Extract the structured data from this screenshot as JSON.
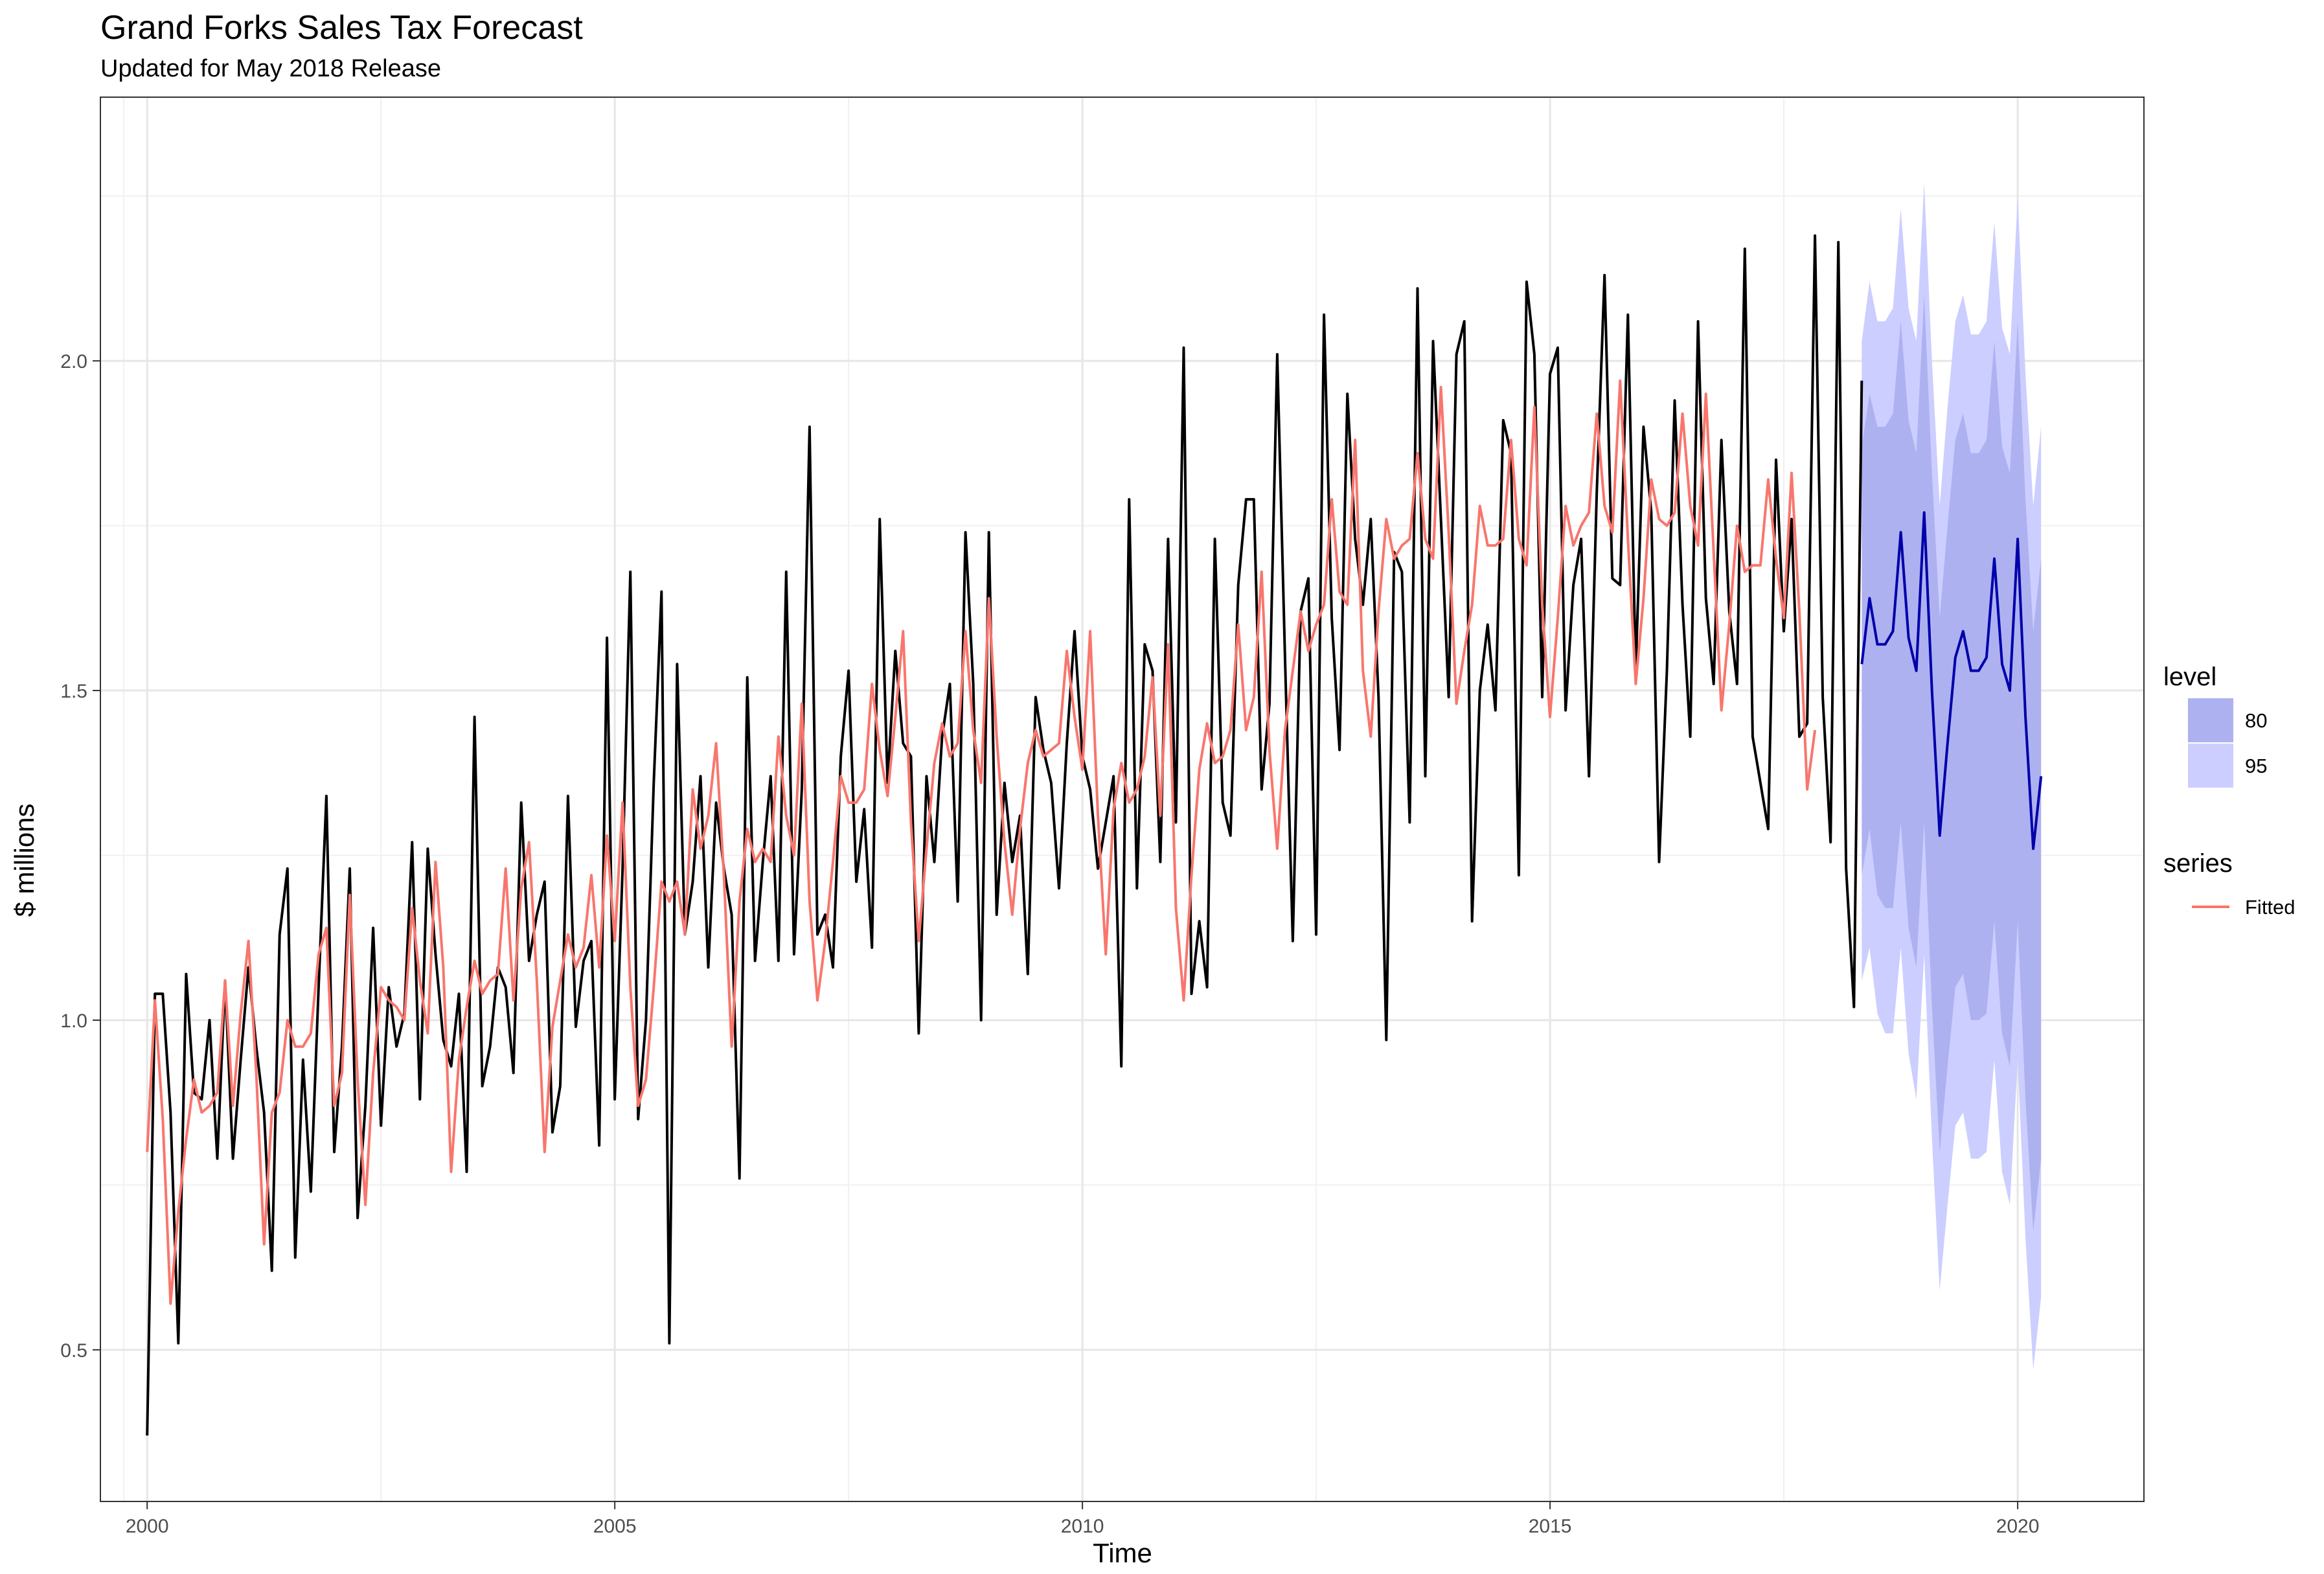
{
  "chart_data": {
    "type": "line",
    "title": "Grand Forks Sales Tax Forecast",
    "subtitle": "Updated for May 2018 Release",
    "xlabel": "Time",
    "ylabel": "$ millions",
    "xlim": [
      1999.5,
      2021.35
    ],
    "ylim": [
      0.27,
      2.4
    ],
    "x_ticks": [
      2000,
      2005,
      2010,
      2015,
      2020
    ],
    "x_tick_labels": [
      "2000",
      "2005",
      "2010",
      "2015",
      "2020"
    ],
    "y_ticks": [
      0.5,
      1.0,
      1.5,
      2.0
    ],
    "y_tick_labels": [
      "0.5",
      "1.0",
      "1.5",
      "2.0"
    ],
    "grid": true,
    "legend_position": "right",
    "actual": {
      "start": 2000.0,
      "step": 0.08333,
      "color": "#000000",
      "values": [
        0.37,
        1.04,
        1.04,
        0.86,
        0.51,
        1.07,
        0.89,
        0.88,
        1.0,
        0.79,
        1.06,
        0.79,
        0.94,
        1.08,
        0.96,
        0.86,
        0.62,
        1.13,
        1.23,
        0.64,
        0.94,
        0.74,
        1.05,
        1.34,
        0.8,
        0.96,
        1.23,
        0.7,
        0.87,
        1.14,
        0.84,
        1.05,
        0.96,
        1.01,
        1.27,
        0.88,
        1.26,
        1.1,
        0.97,
        0.93,
        1.04,
        0.77,
        1.46,
        0.9,
        0.96,
        1.08,
        1.05,
        0.92,
        1.33,
        1.09,
        1.16,
        1.21,
        0.83,
        0.9,
        1.34,
        0.99,
        1.09,
        1.12,
        0.81,
        1.58,
        0.88,
        1.23,
        1.68,
        0.85,
        1.0,
        1.36,
        1.65,
        0.51,
        1.54,
        1.13,
        1.21,
        1.37,
        1.08,
        1.33,
        1.23,
        1.16,
        0.76,
        1.52,
        1.09,
        1.24,
        1.37,
        1.09,
        1.68,
        1.1,
        1.35,
        1.9,
        1.13,
        1.16,
        1.08,
        1.4,
        1.53,
        1.21,
        1.32,
        1.11,
        1.76,
        1.36,
        1.56,
        1.42,
        1.4,
        0.98,
        1.37,
        1.24,
        1.43,
        1.51,
        1.18,
        1.74,
        1.51,
        1.0,
        1.74,
        1.16,
        1.36,
        1.24,
        1.31,
        1.07,
        1.49,
        1.41,
        1.36,
        1.2,
        1.42,
        1.59,
        1.4,
        1.35,
        1.23,
        1.3,
        1.37,
        0.93,
        1.79,
        1.2,
        1.57,
        1.53,
        1.24,
        1.73,
        1.3,
        2.02,
        1.04,
        1.15,
        1.05,
        1.73,
        1.33,
        1.28,
        1.66,
        1.79,
        1.79,
        1.35,
        1.48,
        2.01,
        1.55,
        1.12,
        1.62,
        1.67,
        1.13,
        2.07,
        1.61,
        1.41,
        1.95,
        1.73,
        1.63,
        1.76,
        1.49,
        0.97,
        1.71,
        1.68,
        1.3,
        2.11,
        1.37,
        2.03,
        1.76,
        1.49,
        2.01,
        2.06,
        1.15,
        1.5,
        1.6,
        1.47,
        1.91,
        1.86,
        1.22,
        2.12,
        2.01,
        1.49,
        1.98,
        2.02,
        1.47,
        1.66,
        1.73,
        1.37,
        1.8,
        2.13,
        1.67,
        1.66,
        2.07,
        1.53,
        1.9,
        1.77,
        1.24,
        1.53,
        1.94,
        1.63,
        1.43,
        2.06,
        1.64,
        1.51,
        1.88,
        1.62,
        1.51,
        2.17,
        1.43,
        1.36,
        1.29,
        1.85,
        1.59,
        1.76,
        1.43,
        1.45,
        2.19,
        1.49,
        1.27,
        2.18,
        1.23,
        1.02,
        1.97
      ]
    },
    "fitted": {
      "name": "Fitted",
      "start": 2000.0,
      "step": 0.08333,
      "color": "#f8766d",
      "values": [
        0.8,
        1.03,
        0.85,
        0.57,
        0.71,
        0.82,
        0.91,
        0.86,
        0.87,
        0.89,
        1.06,
        0.87,
        1.01,
        1.12,
        0.92,
        0.66,
        0.86,
        0.89,
        1.0,
        0.96,
        0.96,
        0.98,
        1.1,
        1.14,
        0.87,
        0.92,
        1.19,
        0.91,
        0.72,
        0.92,
        1.05,
        1.03,
        1.02,
        1.0,
        1.17,
        1.06,
        0.98,
        1.24,
        1.08,
        0.77,
        0.94,
        1.02,
        1.09,
        1.04,
        1.06,
        1.07,
        1.23,
        1.03,
        1.2,
        1.27,
        1.06,
        0.8,
        0.99,
        1.06,
        1.13,
        1.08,
        1.11,
        1.22,
        1.08,
        1.28,
        1.12,
        1.33,
        1.05,
        0.87,
        0.91,
        1.05,
        1.21,
        1.18,
        1.21,
        1.13,
        1.35,
        1.26,
        1.31,
        1.42,
        1.22,
        0.96,
        1.18,
        1.29,
        1.24,
        1.26,
        1.24,
        1.43,
        1.31,
        1.25,
        1.48,
        1.18,
        1.03,
        1.12,
        1.24,
        1.37,
        1.33,
        1.33,
        1.35,
        1.51,
        1.41,
        1.34,
        1.46,
        1.59,
        1.3,
        1.12,
        1.26,
        1.39,
        1.45,
        1.4,
        1.42,
        1.59,
        1.44,
        1.36,
        1.64,
        1.43,
        1.27,
        1.16,
        1.29,
        1.39,
        1.44,
        1.4,
        1.41,
        1.42,
        1.56,
        1.46,
        1.38,
        1.59,
        1.31,
        1.1,
        1.32,
        1.39,
        1.33,
        1.35,
        1.4,
        1.52,
        1.31,
        1.57,
        1.17,
        1.03,
        1.22,
        1.38,
        1.45,
        1.39,
        1.4,
        1.44,
        1.6,
        1.44,
        1.49,
        1.68,
        1.41,
        1.26,
        1.44,
        1.53,
        1.62,
        1.56,
        1.6,
        1.63,
        1.79,
        1.65,
        1.63,
        1.88,
        1.53,
        1.43,
        1.62,
        1.76,
        1.7,
        1.72,
        1.73,
        1.86,
        1.73,
        1.7,
        1.96,
        1.74,
        1.48,
        1.56,
        1.63,
        1.78,
        1.72,
        1.72,
        1.73,
        1.88,
        1.73,
        1.69,
        1.93,
        1.63,
        1.46,
        1.61,
        1.78,
        1.72,
        1.75,
        1.77,
        1.92,
        1.78,
        1.74,
        1.97,
        1.73,
        1.51,
        1.64,
        1.82,
        1.76,
        1.75,
        1.77,
        1.92,
        1.78,
        1.72,
        1.95,
        1.71,
        1.47,
        1.6,
        1.75,
        1.68,
        1.69,
        1.69,
        1.82,
        1.7,
        1.61,
        1.83,
        1.62,
        1.35,
        1.44
      ]
    },
    "forecast": {
      "start": 2018.3333,
      "step": 0.08333,
      "color": "#0000aa",
      "values": [
        1.54,
        1.64,
        1.57,
        1.57,
        1.59,
        1.74,
        1.58,
        1.53,
        1.77,
        1.5,
        1.28,
        1.42,
        1.55,
        1.59,
        1.53,
        1.53,
        1.55,
        1.7,
        1.54,
        1.5,
        1.73,
        1.46,
        1.26,
        1.37
      ],
      "lo80": [
        1.22,
        1.29,
        1.19,
        1.17,
        1.17,
        1.3,
        1.14,
        1.08,
        1.3,
        1.02,
        0.8,
        0.93,
        1.05,
        1.07,
        1.0,
        1.0,
        1.01,
        1.15,
        0.98,
        0.93,
        1.15,
        0.88,
        0.68,
        0.79
      ],
      "hi80": [
        1.87,
        1.95,
        1.9,
        1.9,
        1.92,
        2.06,
        1.91,
        1.86,
        2.1,
        1.83,
        1.61,
        1.75,
        1.88,
        1.92,
        1.86,
        1.86,
        1.88,
        2.03,
        1.87,
        1.83,
        2.06,
        1.79,
        1.59,
        1.7
      ],
      "lo95": [
        1.06,
        1.11,
        1.01,
        0.98,
        0.98,
        1.11,
        0.95,
        0.88,
        1.1,
        0.82,
        0.59,
        0.72,
        0.84,
        0.86,
        0.79,
        0.79,
        0.8,
        0.94,
        0.77,
        0.72,
        0.94,
        0.67,
        0.47,
        0.58
      ],
      "hi95": [
        2.03,
        2.12,
        2.06,
        2.06,
        2.08,
        2.23,
        2.08,
        2.03,
        2.27,
        2.0,
        1.78,
        1.93,
        2.06,
        2.1,
        2.04,
        2.04,
        2.06,
        2.21,
        2.05,
        2.01,
        2.25,
        1.98,
        1.78,
        1.9
      ]
    },
    "legend": {
      "level_title": "level",
      "levels": [
        {
          "label": "80",
          "color": "#aeb1f0"
        },
        {
          "label": "95",
          "color": "#cbceff"
        }
      ],
      "series_title": "series",
      "series": [
        {
          "label": "Fitted",
          "color": "#f8766d"
        }
      ]
    }
  }
}
